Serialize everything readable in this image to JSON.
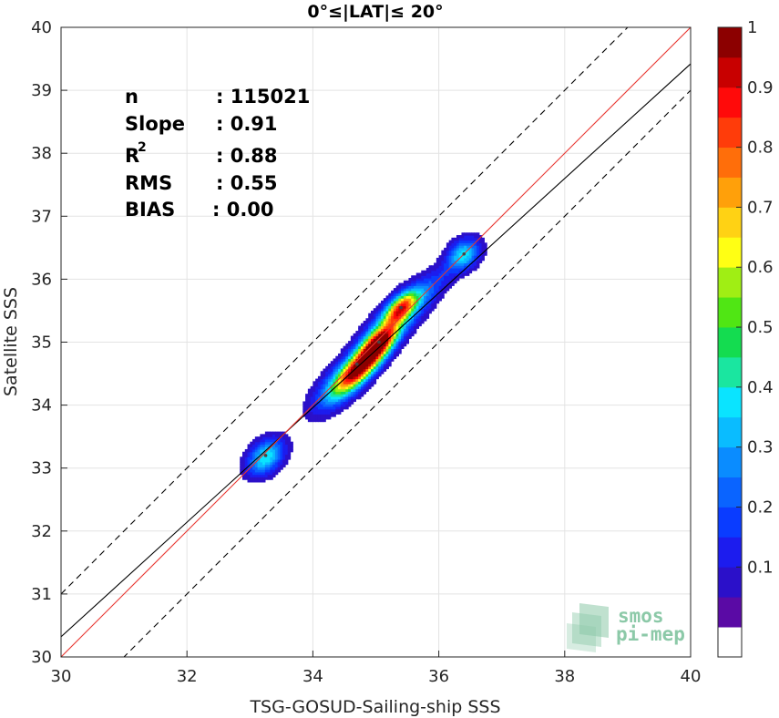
{
  "chart_data": {
    "type": "heatmap",
    "title": "0°≤|LAT|≤ 20°",
    "xlabel": "TSG-GOSUD-Sailing-ship SSS",
    "ylabel": "Satellite SSS",
    "xlim": [
      30,
      40
    ],
    "ylim": [
      30,
      40
    ],
    "xticks": [
      "30",
      "32",
      "34",
      "36",
      "38",
      "40"
    ],
    "yticks": [
      "30",
      "31",
      "32",
      "33",
      "34",
      "35",
      "36",
      "37",
      "38",
      "39",
      "40"
    ],
    "grid": true,
    "stats": [
      {
        "label": "n",
        "value": ": 115021"
      },
      {
        "label": "Slope",
        "value": ": 0.91"
      },
      {
        "label": "R",
        "superscript": "2",
        "value": ": 0.88"
      },
      {
        "label": "RMS",
        "value": ": 0.55"
      },
      {
        "label": "BIAS",
        "value": ": 0.00"
      }
    ],
    "colorbar": {
      "min": 0,
      "max": 1,
      "levels": 20,
      "ticks": [
        "0.1",
        "0.2",
        "0.3",
        "0.4",
        "0.5",
        "0.6",
        "0.7",
        "0.8",
        "0.9",
        "1"
      ],
      "tick_values": [
        0.1,
        0.2,
        0.3,
        0.4,
        0.5,
        0.6,
        0.7,
        0.8,
        0.9,
        1.0
      ],
      "colors": [
        "#ffffff",
        "#5a0aa5",
        "#2b10c9",
        "#1c1cee",
        "#0a3cff",
        "#0a64ff",
        "#0a8cff",
        "#0abcff",
        "#0ae4ff",
        "#1ae6a0",
        "#14dc50",
        "#50e614",
        "#a0ee14",
        "#ffff14",
        "#ffd214",
        "#ffa00a",
        "#ff6e0a",
        "#ff3c0a",
        "#ff0a0a",
        "#c80000",
        "#8c0000"
      ]
    },
    "lines": {
      "identity": {
        "slope": 1.0,
        "intercept": 0.0,
        "color": "#e8332d"
      },
      "fit": {
        "slope": 0.91,
        "intercept": 3.02,
        "color": "#000000"
      },
      "upper_bound": {
        "slope": 1.0,
        "intercept": 1.0,
        "color": "#000000",
        "style": "dashed"
      },
      "lower_bound": {
        "slope": 1.0,
        "intercept": -1.0,
        "color": "#000000",
        "style": "dashed"
      }
    },
    "density_peaks": [
      {
        "x": 34.7,
        "y": 34.65,
        "value": 1.0
      },
      {
        "x": 35.05,
        "y": 35.0,
        "value": 0.85
      },
      {
        "x": 35.4,
        "y": 35.55,
        "value": 0.75
      },
      {
        "x": 36.4,
        "y": 36.4,
        "value": 0.45
      },
      {
        "x": 33.25,
        "y": 33.2,
        "value": 0.4
      }
    ]
  },
  "logo": {
    "line1": "smos",
    "line2": "pi-mep"
  }
}
